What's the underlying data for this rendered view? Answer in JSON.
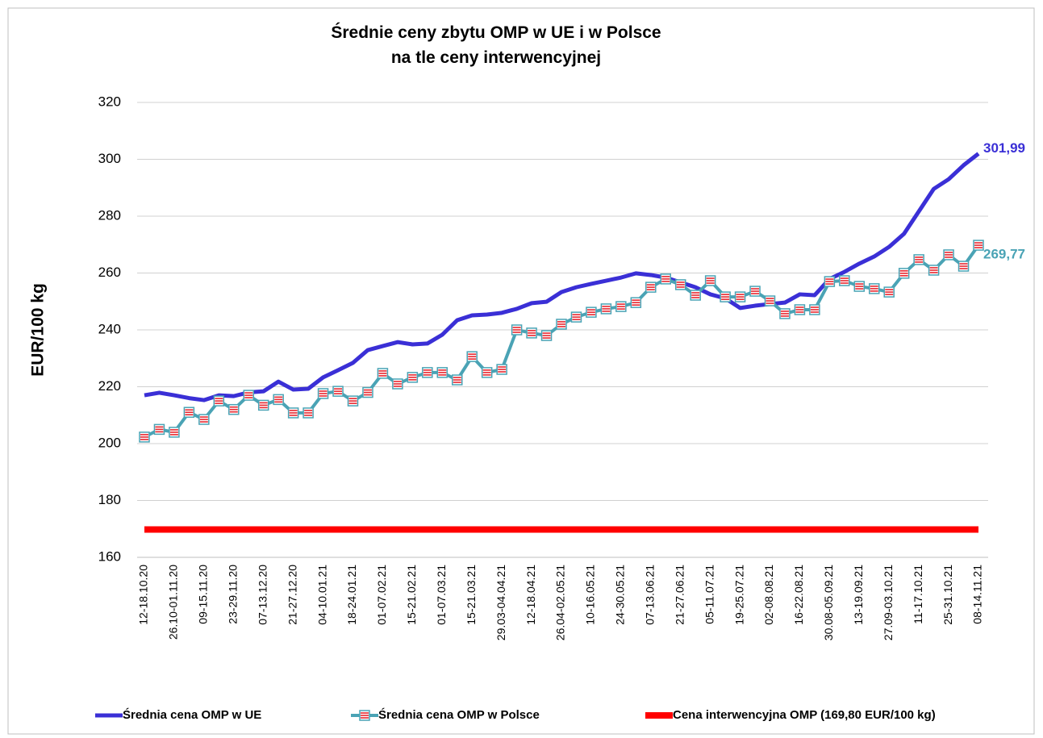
{
  "chart_data": {
    "type": "line",
    "title": [
      "Średnie ceny zbytu OMP w UE i w Polsce",
      "na tle ceny interwencyjnej"
    ],
    "y_label": "EUR/100 kg",
    "categories": [
      "12-18.10.20",
      null,
      "26.10-01.11.20",
      null,
      "09-15.11.20",
      null,
      "23-29.11.20",
      null,
      "07-13.12.20",
      null,
      "21-27.12.20",
      null,
      "04-10.01.21",
      null,
      "18-24.01.21",
      null,
      "01-07.02.21",
      null,
      "15-21.02.21",
      null,
      "01-07.03.21",
      null,
      "15-21.03.21",
      null,
      "29.03-04.04.21",
      null,
      "12-18.04.21",
      null,
      "26.04-02.05.21",
      null,
      "10-16.05.21",
      null,
      "24-30.05.21",
      null,
      "07-13.06.21",
      null,
      "21-27.06.21",
      null,
      "05-11.07.21",
      null,
      "19-25.07.21",
      null,
      "02-08.08.21",
      null,
      "16-22.08.21",
      null,
      "30.08-05.09.21",
      null,
      "13-19.09.21",
      null,
      "27.09-03.10.21",
      null,
      "11-17.10.21",
      null,
      "25-31.10.21",
      null,
      "08-14.11.21"
    ],
    "series": [
      {
        "name": "Średnia cena OMP w UE",
        "color": "#3a2fd6",
        "values": [
          217,
          217.9,
          217,
          216,
          215.3,
          217,
          216.7,
          218,
          218.4,
          221.8,
          219,
          219.3,
          223.3,
          225.8,
          228.4,
          232.9,
          234.3,
          235.7,
          234.9,
          235.2,
          238.3,
          243.4,
          245.1,
          245.4,
          246,
          247.4,
          249.4,
          249.9,
          253.3,
          255,
          256.2,
          257.3,
          258.4,
          259.9,
          259.3,
          258.4,
          256.7,
          255,
          252.5,
          251.1,
          247.7,
          248.5,
          249.1,
          249.6,
          252.5,
          252.2,
          257.9,
          260.4,
          263.3,
          265.8,
          269.2,
          273.8,
          281.7,
          289.6,
          293,
          297.9,
          301.99
        ],
        "value_labels": {
          "56": "301,99"
        }
      },
      {
        "name": "Średnia cena OMP w Polsce",
        "color": "#4aa3b5",
        "marker": "square",
        "values": [
          202.3,
          205,
          204,
          211,
          208.5,
          215,
          212,
          217,
          213.5,
          215.5,
          210.8,
          210.8,
          217.6,
          218.4,
          215,
          218,
          224.7,
          221,
          223.3,
          225,
          225,
          222.4,
          230.6,
          225,
          226.1,
          240,
          238.9,
          238,
          242,
          244.5,
          246.2,
          247.4,
          248.2,
          249.6,
          255,
          257.9,
          255.9,
          252.2,
          257.3,
          251.6,
          251.6,
          253.6,
          250.2,
          245.7,
          247.1,
          247.1,
          257,
          257.3,
          255.3,
          254.5,
          253.3,
          259.9,
          264.7,
          261,
          266.4,
          262.4,
          269.77
        ],
        "value_labels": {
          "56": "269,77"
        }
      },
      {
        "name": "Cena interwencyjna OMP (169,80 EUR/100 kg)",
        "color": "#ff0000",
        "values": [
          169.8,
          169.8,
          169.8,
          169.8,
          169.8,
          169.8,
          169.8,
          169.8,
          169.8,
          169.8,
          169.8,
          169.8,
          169.8,
          169.8,
          169.8,
          169.8,
          169.8,
          169.8,
          169.8,
          169.8,
          169.8,
          169.8,
          169.8,
          169.8,
          169.8,
          169.8,
          169.8,
          169.8,
          169.8,
          169.8,
          169.8,
          169.8,
          169.8,
          169.8,
          169.8,
          169.8,
          169.8,
          169.8,
          169.8,
          169.8,
          169.8,
          169.8,
          169.8,
          169.8,
          169.8,
          169.8,
          169.8,
          169.8,
          169.8,
          169.8,
          169.8,
          169.8,
          169.8,
          169.8,
          169.8,
          169.8,
          169.8
        ]
      }
    ],
    "ylim": [
      160,
      320
    ],
    "yticks": [
      160,
      180,
      200,
      220,
      240,
      260,
      280,
      300,
      320
    ],
    "grid": true,
    "legend": "bottom"
  }
}
